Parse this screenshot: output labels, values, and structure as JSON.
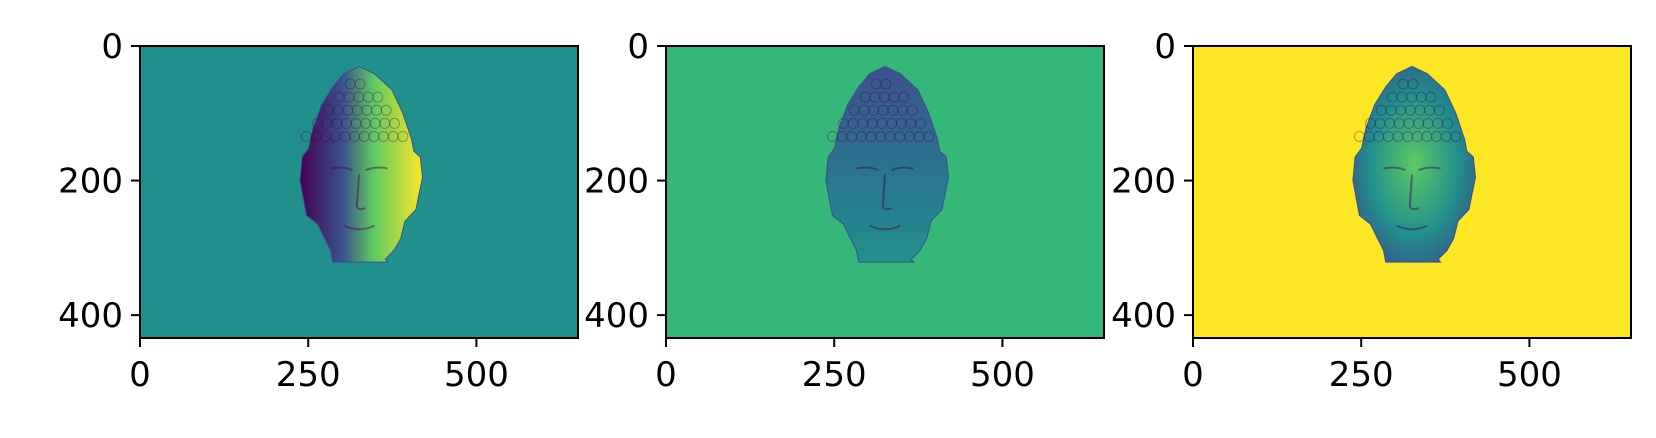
{
  "colors": {
    "viridis_dark": "#440154",
    "viridis_blue": "#3b528b",
    "viridis_teal": "#21908d",
    "viridis_green": "#35b779",
    "viridis_yellow": "#fde725"
  },
  "chart_data": [
    {
      "type": "heatmap",
      "image_width": 651,
      "image_height": 434,
      "xlim": [
        0,
        651
      ],
      "ylim": [
        434,
        0
      ],
      "xticks": [
        0,
        250,
        500
      ],
      "yticks": [
        0,
        200,
        400
      ],
      "xtick_labels": [
        "0",
        "250",
        "500"
      ],
      "ytick_labels": [
        "0",
        "200",
        "400"
      ],
      "colormap": "viridis",
      "background_color": "#21908d",
      "subject": "buddha-head",
      "shading": "horizontal-gradient"
    },
    {
      "type": "heatmap",
      "image_width": 651,
      "image_height": 434,
      "xlim": [
        0,
        651
      ],
      "ylim": [
        434,
        0
      ],
      "xticks": [
        0,
        250,
        500
      ],
      "yticks": [
        0,
        200,
        400
      ],
      "xtick_labels": [
        "0",
        "250",
        "500"
      ],
      "ytick_labels": [
        "0",
        "200",
        "400"
      ],
      "colormap": "viridis",
      "background_color": "#35b779",
      "subject": "buddha-head",
      "shading": "vertical-gradient"
    },
    {
      "type": "heatmap",
      "image_width": 651,
      "image_height": 434,
      "xlim": [
        0,
        651
      ],
      "ylim": [
        434,
        0
      ],
      "xticks": [
        0,
        250,
        500
      ],
      "yticks": [
        0,
        200,
        400
      ],
      "xtick_labels": [
        "0",
        "250",
        "500"
      ],
      "ytick_labels": [
        "0",
        "200",
        "400"
      ],
      "colormap": "viridis",
      "background_color": "#fde725",
      "subject": "buddha-head",
      "shading": "depth"
    }
  ]
}
